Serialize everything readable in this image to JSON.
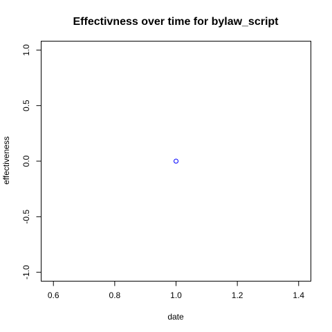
{
  "chart_data": {
    "type": "scatter",
    "title": "Effectivness over time for bylaw_script",
    "xlabel": "date",
    "ylabel": "effectiveness",
    "xlim": [
      0.56,
      1.44
    ],
    "ylim": [
      -1.08,
      1.08
    ],
    "x_ticks": [
      {
        "value": 0.6,
        "label": "0.6"
      },
      {
        "value": 0.8,
        "label": "0.8"
      },
      {
        "value": 1.0,
        "label": "1.0"
      },
      {
        "value": 1.2,
        "label": "1.2"
      },
      {
        "value": 1.4,
        "label": "1.4"
      }
    ],
    "y_ticks": [
      {
        "value": -1.0,
        "label": "-1.0"
      },
      {
        "value": -0.5,
        "label": "-0.5"
      },
      {
        "value": 0.0,
        "label": "0.0"
      },
      {
        "value": 0.5,
        "label": "0.5"
      },
      {
        "value": 1.0,
        "label": "1.0"
      }
    ],
    "points": [
      {
        "x": 1.0,
        "y": 0.0
      }
    ],
    "point_color": "#0000ff",
    "marker": "open-circle",
    "grid": false,
    "legend": "none"
  }
}
